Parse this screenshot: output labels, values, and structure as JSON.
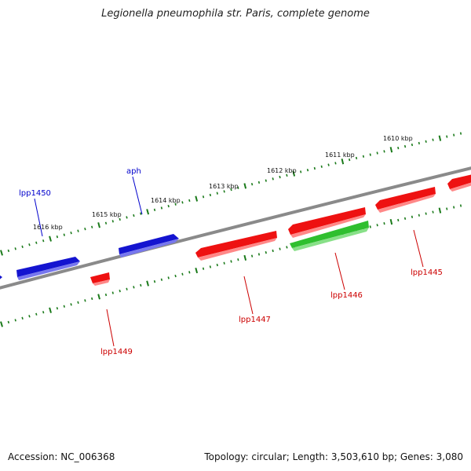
{
  "title": "Legionella pneumophila str. Paris, complete genome",
  "accession": "Accession: NC_006368",
  "summary": "Topology: circular; Length: 3,503,610 bp; Genes: 3,080",
  "colors": {
    "forward_gene": "#1212d8",
    "reverse_gene": "#ee1111",
    "rna_gene": "#33cc33",
    "backbone": "#808080",
    "ticks": "#1a7a1a",
    "label_forward": "#0000cc",
    "label_reverse": "#cc0000"
  },
  "kbp_labels": [
    {
      "text": "1616 kbp"
    },
    {
      "text": "1615 kbp"
    },
    {
      "text": "1614 kbp"
    },
    {
      "text": "1613 kbp"
    },
    {
      "text": "1612 kbp"
    },
    {
      "text": "1611 kbp"
    },
    {
      "text": "1610 kbp"
    }
  ],
  "genes": [
    {
      "name": "lpp1450",
      "strand": "forward"
    },
    {
      "name": "aph",
      "strand": "forward"
    },
    {
      "name": "lpp1449",
      "strand": "reverse"
    },
    {
      "name": "lpp1447",
      "strand": "reverse"
    },
    {
      "name": "lpp1446",
      "strand": "reverse"
    },
    {
      "name": "lpp1445",
      "strand": "reverse"
    }
  ]
}
